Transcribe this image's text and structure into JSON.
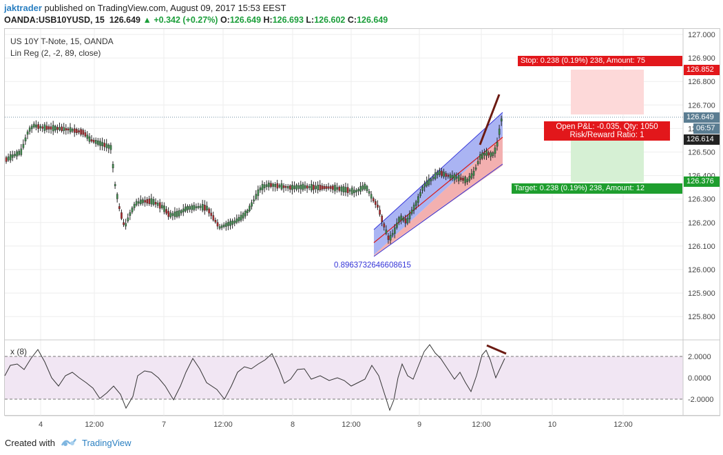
{
  "header": {
    "user": "jaktrader",
    "published": "published on TradingView.com, August 09, 2017 15:53 EEST",
    "symbol": "OANDA:USB10YUSD, 15",
    "last": "126.649",
    "change": "▲ +0.342 (+0.27%)",
    "o_label": "O:",
    "o_value": "126.649",
    "h_label": "H:",
    "h_value": "126.693",
    "l_label": "L:",
    "l_value": "126.602",
    "c_label": "C:",
    "c_value": "126.649"
  },
  "legend": {
    "instrument": "US 10Y T-Note, 15, OANDA",
    "indicator": "Lin Reg (2, -2, 89, close)",
    "oscillator": "x (8)"
  },
  "price_axis": {
    "ticks": [
      "127.000",
      "126.900",
      "126.800",
      "126.700",
      "126.600",
      "126.500",
      "126.400",
      "126.300",
      "126.200",
      "126.100",
      "126.000",
      "125.900",
      "125.800"
    ],
    "stop_label": "126.852",
    "last_label": "126.649",
    "countdown": "06:57",
    "entry_label": "126.614",
    "target_label": "126.376"
  },
  "osc_axis": {
    "ticks": [
      "2.0000",
      "0.0000",
      "-2.0000"
    ]
  },
  "time_axis": {
    "ticks": [
      "4",
      "12:00",
      "7",
      "12:00",
      "8",
      "12:00",
      "9",
      "12:00",
      "10",
      "12:00"
    ]
  },
  "position": {
    "stop": "Stop: 0.238 (0.19%) 238, Amount: 75",
    "target": "Target: 0.238 (0.19%) 238, Amount: 12",
    "pnl": "Open P&L: -0.035, Qty: 1050",
    "rr": "Risk/Reward Ratio: 1"
  },
  "linreg_label": "0.8963732646608615",
  "colors": {
    "up": "#3c8a4a",
    "down": "#b0282a",
    "accent": "#2a7fc1",
    "stop": "#e2171b",
    "target": "#1e9e2e"
  },
  "footer": {
    "created": "Created with",
    "brand": "TradingView"
  }
}
